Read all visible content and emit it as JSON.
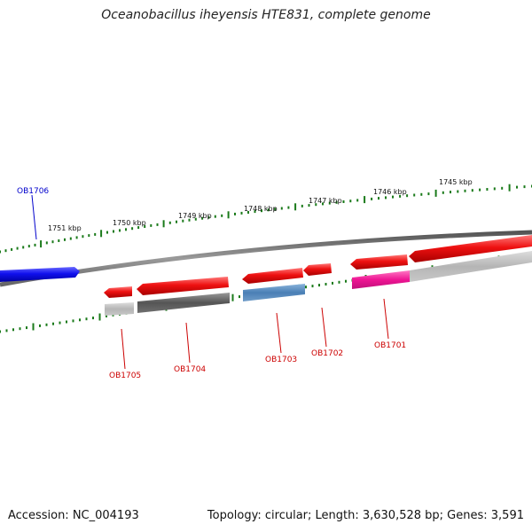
{
  "title": "Oceanobacillus iheyensis HTE831, complete genome",
  "footer": {
    "accession": "Accession: NC_004193",
    "summary": "Topology: circular; Length: 3,630,528 bp; Genes: 3,591"
  },
  "colors": {
    "tick": "#1a7a1a",
    "backbone": "#808080",
    "forward_label": "#0000cc",
    "reverse_label": "#cc0000"
  },
  "scale": {
    "labels": [
      "1745 kbp",
      "1746 kbp",
      "1747 kbp",
      "1748 kbp",
      "1749 kbp",
      "1750 kbp",
      "1751 kbp"
    ]
  },
  "genes": [
    {
      "label": "OB1706",
      "color": "#1010ee",
      "strand": "forward"
    },
    {
      "label": "OB1705",
      "color": "#ee1111",
      "strand": "reverse"
    },
    {
      "label": "OB1704",
      "color": "#ee1111",
      "strand": "reverse"
    },
    {
      "label": "OB1703",
      "color": "#ee1111",
      "strand": "reverse"
    },
    {
      "label": "OB1702",
      "color": "#ee1111",
      "strand": "reverse"
    },
    {
      "label": "OB1701",
      "color": "#ee1111",
      "strand": "reverse"
    }
  ]
}
